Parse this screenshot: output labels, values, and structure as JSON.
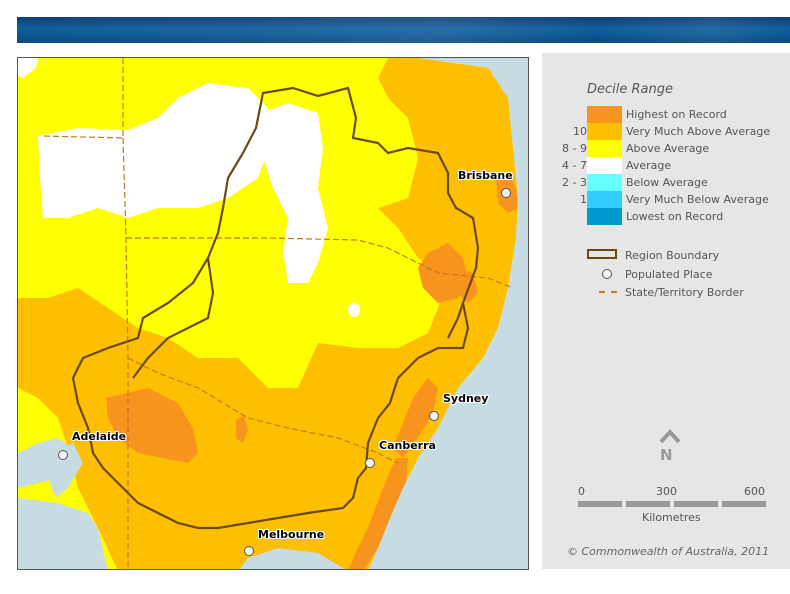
{
  "legend": {
    "title": "Decile Range",
    "rows": [
      {
        "code": "",
        "label": "Highest on Record",
        "color": "#f7941d"
      },
      {
        "code": "10",
        "label": "Very Much Above Average",
        "color": "#fdbf00"
      },
      {
        "code": "8 - 9",
        "label": "Above Average",
        "color": "#ffff00"
      },
      {
        "code": "4 - 7",
        "label": "Average",
        "color": "#ffffff"
      },
      {
        "code": "2 - 3",
        "label": "Below Average",
        "color": "#66ffff"
      },
      {
        "code": "1",
        "label": "Very Much Below Average",
        "color": "#33ccff"
      },
      {
        "code": "",
        "label": "Lowest on Record",
        "color": "#0099cc"
      }
    ],
    "symbols": {
      "region_boundary": "Region Boundary",
      "populated_place": "Populated Place",
      "state_border": "State/Territory Border"
    }
  },
  "compass": {
    "letter": "N"
  },
  "scale": {
    "ticks": [
      "0",
      "300",
      "600"
    ],
    "units": "Kilometres"
  },
  "copyright": "© Commonwealth of Australia, 2011",
  "cities": {
    "brisbane": "Brisbane",
    "sydney": "Sydney",
    "canberra": "Canberra",
    "adelaide": "Adelaide",
    "melbourne": "Melbourne"
  },
  "colors": {
    "ocean": "#c7dbe2",
    "region_boundary": "#6b4a12",
    "state_border": "#c8781e",
    "banner": "#0f5fa0"
  }
}
